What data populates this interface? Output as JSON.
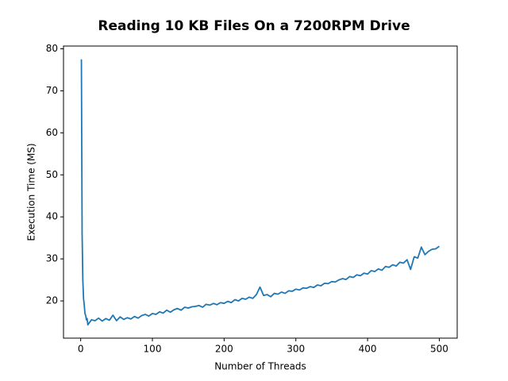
{
  "chart_data": {
    "type": "line",
    "title": "Reading 10 KB Files On a 7200RPM Drive",
    "xlabel": "Number of Threads",
    "ylabel": "Execution Time (MS)",
    "x": [
      1,
      2,
      3,
      4,
      5,
      6,
      7,
      8,
      9,
      10,
      15,
      20,
      25,
      30,
      35,
      40,
      45,
      50,
      55,
      60,
      65,
      70,
      75,
      80,
      85,
      90,
      95,
      100,
      105,
      110,
      115,
      120,
      125,
      130,
      135,
      140,
      145,
      150,
      155,
      160,
      165,
      170,
      175,
      180,
      185,
      190,
      195,
      200,
      205,
      210,
      215,
      220,
      225,
      230,
      235,
      240,
      245,
      250,
      255,
      260,
      265,
      270,
      275,
      280,
      285,
      290,
      295,
      300,
      305,
      310,
      315,
      320,
      325,
      330,
      335,
      340,
      345,
      350,
      355,
      360,
      365,
      370,
      375,
      380,
      385,
      390,
      395,
      400,
      405,
      410,
      415,
      420,
      425,
      430,
      435,
      440,
      445,
      450,
      455,
      460,
      465,
      470,
      475,
      480,
      485,
      490,
      495,
      500
    ],
    "series": [
      {
        "name": "Execution Time",
        "color": "#1f77b4",
        "values": [
          77.5,
          36,
          25,
          20.5,
          19,
          17,
          16.5,
          15.5,
          15.8,
          14.3,
          15.5,
          15.3,
          15.9,
          15.2,
          15.8,
          15.4,
          16.6,
          15.3,
          16.2,
          15.6,
          16.0,
          15.7,
          16.3,
          15.9,
          16.5,
          16.8,
          16.4,
          17.0,
          16.8,
          17.4,
          17.1,
          17.8,
          17.3,
          17.9,
          18.2,
          17.8,
          18.5,
          18.3,
          18.6,
          18.7,
          18.9,
          18.5,
          19.2,
          19.0,
          19.4,
          19.1,
          19.6,
          19.4,
          19.9,
          19.6,
          20.3,
          20.0,
          20.6,
          20.4,
          20.9,
          20.6,
          21.5,
          23.3,
          21.3,
          21.5,
          21.0,
          21.8,
          21.6,
          22.1,
          21.8,
          22.4,
          22.3,
          22.8,
          22.6,
          23.1,
          23.0,
          23.4,
          23.2,
          23.8,
          23.6,
          24.2,
          24.1,
          24.6,
          24.5,
          25.0,
          25.3,
          25.1,
          25.8,
          25.6,
          26.2,
          26.0,
          26.6,
          26.4,
          27.2,
          27.0,
          27.6,
          27.3,
          28.2,
          28.0,
          28.6,
          28.3,
          29.2,
          29.0,
          29.8,
          27.5,
          30.5,
          30.2,
          32.8,
          31.0,
          31.8,
          32.3,
          32.4,
          33.0
        ]
      }
    ],
    "xlim": [
      -23.95,
      524.95
    ],
    "xticks": [
      0,
      100,
      200,
      300,
      400,
      500
    ],
    "ylim": [
      11.14,
      80.66
    ],
    "yticks": [
      20,
      30,
      40,
      50,
      60,
      70,
      80
    ],
    "grid": false
  }
}
